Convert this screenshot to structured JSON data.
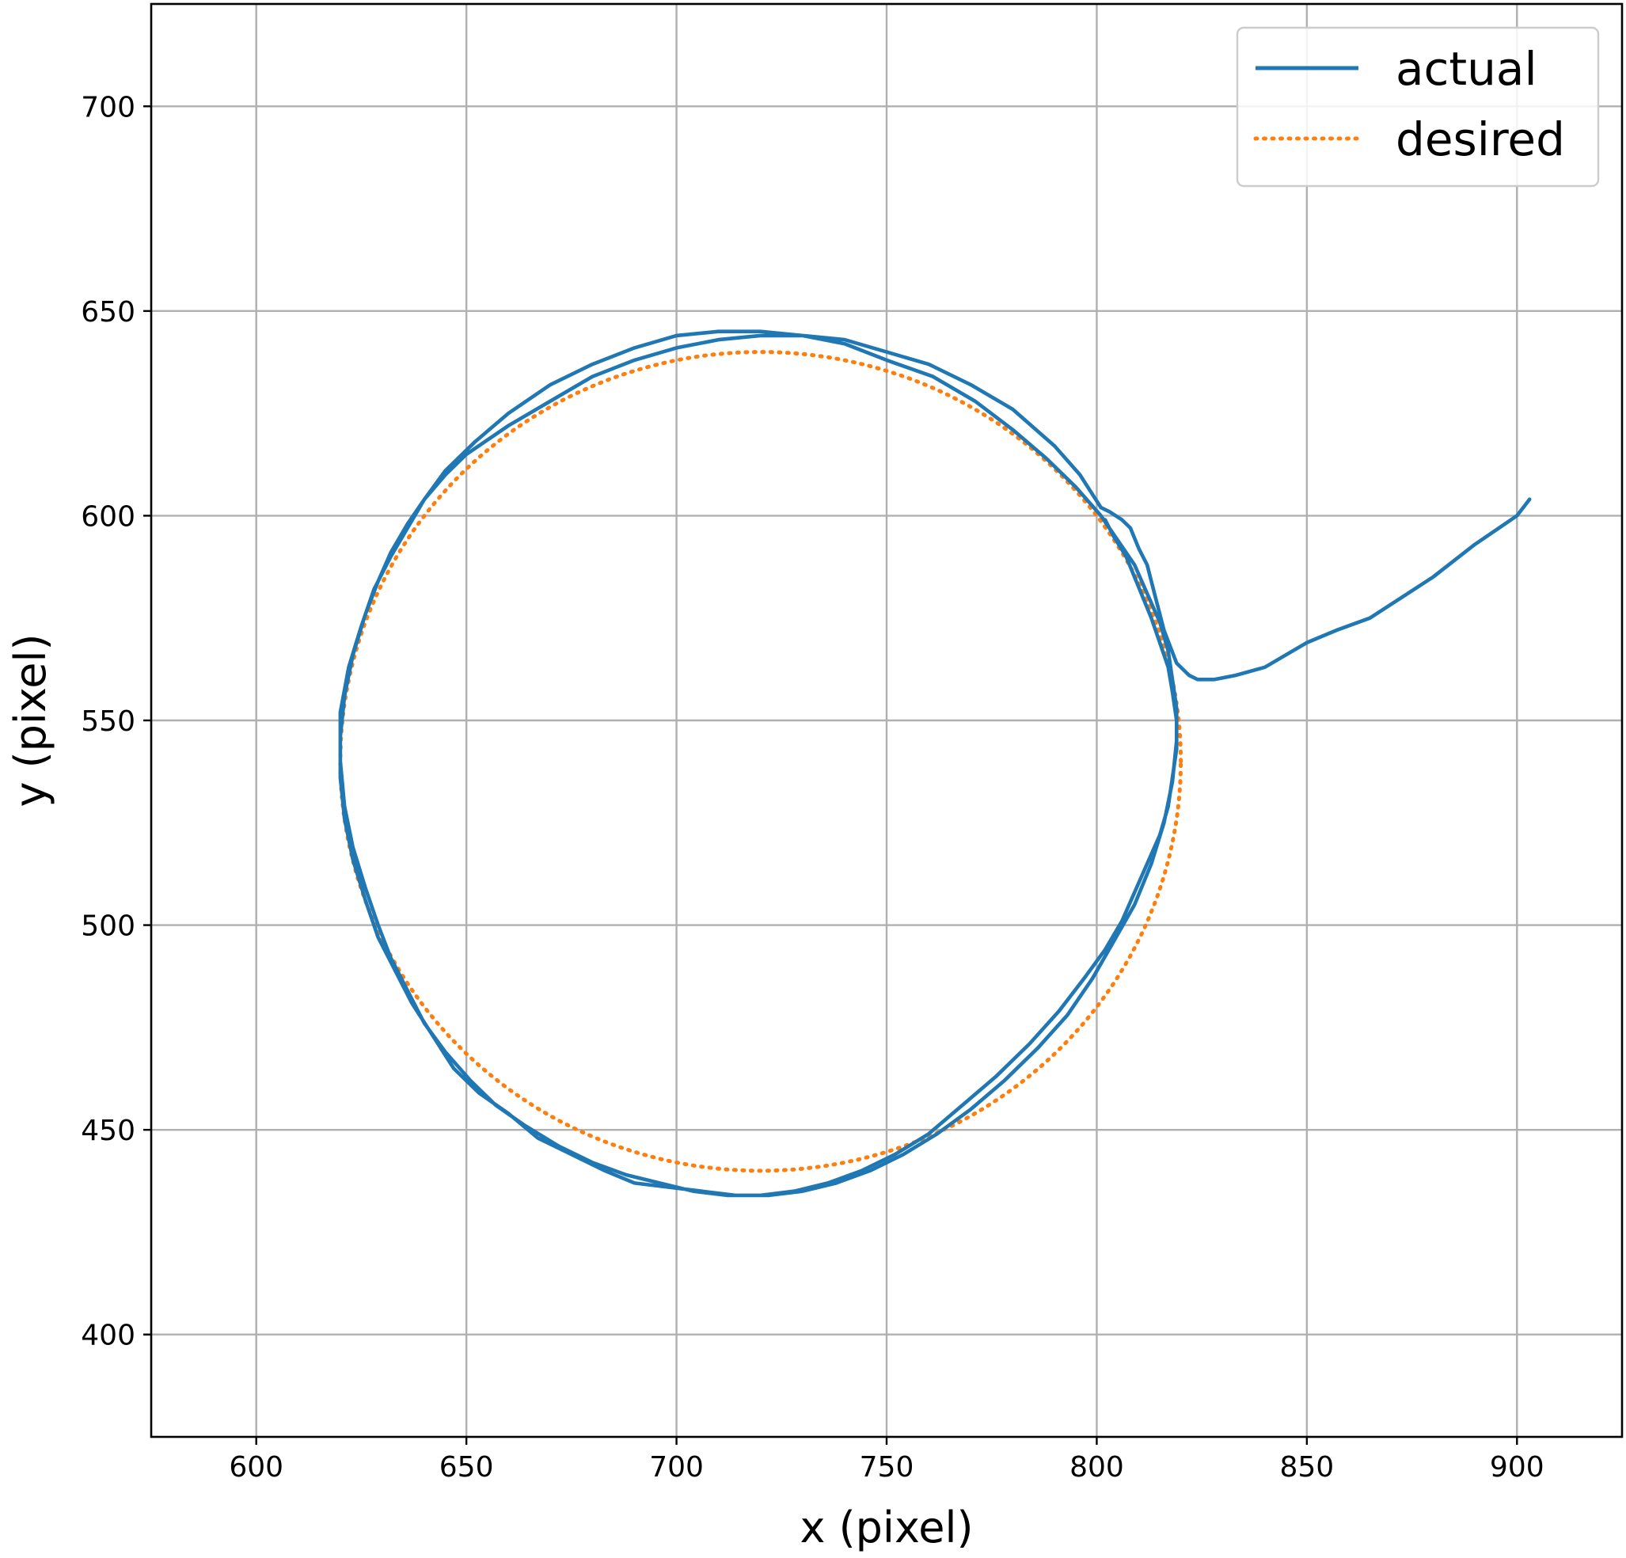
{
  "chart_data": {
    "type": "line",
    "xlabel": "x (pixel)",
    "ylabel": "y (pixel)",
    "xlim": [
      575,
      925
    ],
    "ylim": [
      375,
      725
    ],
    "xticks": [
      600,
      650,
      700,
      750,
      800,
      850,
      900
    ],
    "yticks": [
      400,
      450,
      500,
      550,
      600,
      650,
      700
    ],
    "grid": true,
    "legend": "top-right",
    "colors": {
      "actual": "#1f77b4",
      "desired": "#ff7f0e"
    },
    "series": [
      {
        "name": "actual",
        "style": "solid",
        "x": [
          903,
          900,
          890,
          880,
          865,
          857,
          850,
          840,
          833,
          828,
          824,
          822,
          819,
          816,
          814,
          812,
          810,
          808,
          806,
          803,
          801,
          796,
          790,
          780,
          770,
          760,
          750,
          740,
          730,
          720,
          710,
          700,
          690,
          680,
          670,
          660,
          650,
          645,
          640,
          636,
          632,
          629,
          626,
          623,
          621,
          620,
          620,
          621,
          623,
          626,
          629,
          633,
          637,
          642,
          647,
          653,
          660,
          667,
          675,
          683,
          690,
          698,
          706,
          714,
          722,
          730,
          738,
          746,
          754,
          762,
          770,
          778,
          786,
          793,
          799,
          804,
          809,
          813,
          816,
          818,
          819,
          819,
          818,
          817,
          815,
          812,
          809,
          805,
          801,
          795,
          788,
          780,
          771,
          761,
          750,
          740,
          730,
          720,
          710,
          700,
          690,
          680,
          670,
          660,
          652,
          645,
          640,
          636,
          632,
          628,
          625,
          622,
          620,
          620,
          621,
          623,
          626,
          629,
          632,
          636,
          640,
          645,
          651,
          657,
          664,
          672,
          680,
          688,
          696,
          704,
          712,
          720,
          728,
          736,
          744,
          752,
          760,
          768,
          776,
          784,
          791,
          797,
          802,
          806,
          809,
          812,
          815,
          817,
          818,
          819,
          819,
          818,
          817,
          815,
          813,
          811,
          809,
          807,
          804,
          802
        ],
        "y": [
          604,
          600,
          593,
          585,
          575,
          572,
          569,
          563,
          561,
          560,
          560,
          561,
          564,
          572,
          580,
          588,
          592,
          597,
          599,
          601,
          602,
          610,
          617,
          626,
          632,
          637,
          640,
          643,
          644,
          644,
          643,
          641,
          638,
          634,
          628,
          622,
          615,
          610,
          604,
          598,
          591,
          584,
          576,
          566,
          556,
          546,
          536,
          526,
          516,
          506,
          497,
          489,
          481,
          473,
          465,
          459,
          454,
          448,
          444,
          440,
          437,
          436,
          435,
          434,
          434,
          435,
          437,
          440,
          444,
          449,
          455,
          462,
          470,
          478,
          487,
          496,
          505,
          515,
          525,
          535,
          545,
          553,
          560,
          567,
          574,
          581,
          588,
          594,
          600,
          607,
          614,
          621,
          628,
          634,
          638,
          642,
          644,
          645,
          645,
          644,
          641,
          637,
          632,
          625,
          618,
          611,
          604,
          597,
          590,
          582,
          573,
          563,
          552,
          540,
          529,
          519,
          509,
          500,
          492,
          484,
          476,
          469,
          462,
          456,
          451,
          446,
          442,
          439,
          437,
          435,
          434,
          434,
          435,
          437,
          440,
          444,
          449,
          456,
          463,
          471,
          479,
          487,
          494,
          501,
          508,
          515,
          522,
          529,
          536,
          543,
          550,
          557,
          563,
          569,
          575,
          580,
          585,
          590,
          595,
          599
        ]
      },
      {
        "name": "desired",
        "style": "dotted",
        "center": [
          720,
          540
        ],
        "radius": 100
      }
    ]
  }
}
